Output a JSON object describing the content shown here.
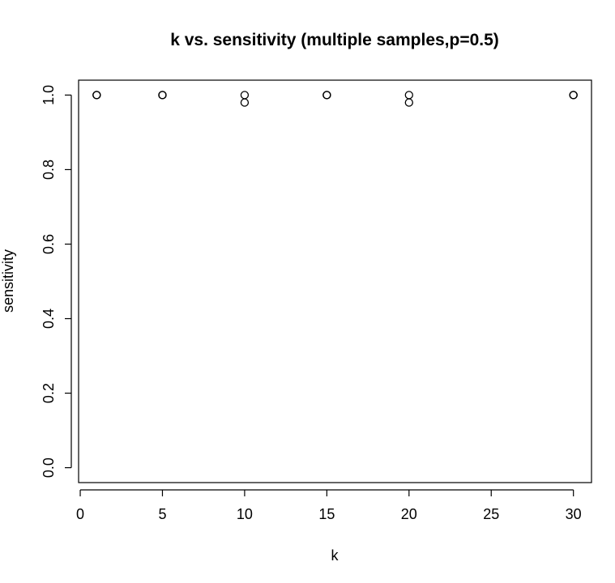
{
  "chart_data": {
    "type": "scatter",
    "title": "k vs. sensitivity (multiple samples,p=0.5)",
    "xlabel": "k",
    "ylabel": "sensitivity",
    "xlim": [
      -0.1,
      31.1
    ],
    "ylim": [
      -0.04,
      1.04
    ],
    "x_ticks": [
      "0",
      "5",
      "10",
      "15",
      "20",
      "25",
      "30"
    ],
    "y_ticks": [
      "0.0",
      "0.2",
      "0.4",
      "0.6",
      "0.8",
      "1.0"
    ],
    "grid": false,
    "marker": "open-circle",
    "series": [
      {
        "x": [
          1,
          1,
          1,
          5,
          5,
          5,
          10,
          10,
          15,
          15,
          15,
          20,
          20,
          30,
          30,
          30
        ],
        "y": [
          1.0,
          1.0,
          1.0,
          1.0,
          1.0,
          1.0,
          1.0,
          0.98,
          1.0,
          1.0,
          1.0,
          1.0,
          0.98,
          1.0,
          1.0,
          1.0
        ]
      }
    ]
  }
}
